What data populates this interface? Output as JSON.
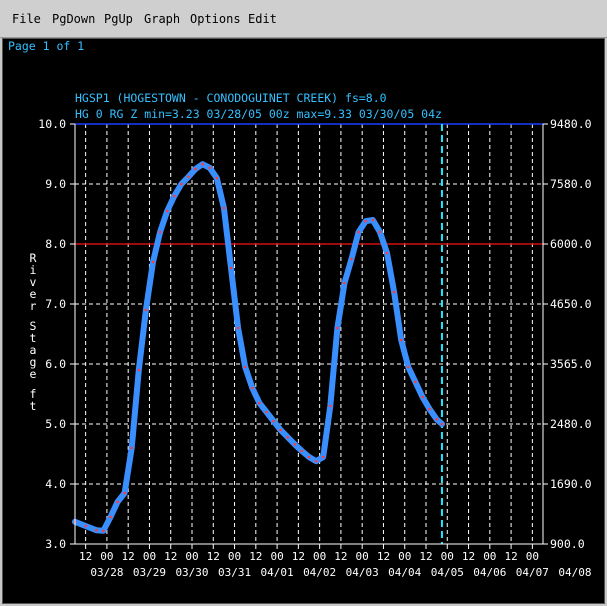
{
  "menu": [
    "File",
    "PgDown",
    "PgUp",
    "Graph",
    "Options",
    "Edit"
  ],
  "page_label": "Page 1 of 1",
  "colors": {
    "background": "#000000",
    "grid": "#ffffff",
    "axis_text": "#ffffff",
    "header_text": "#34c0ff",
    "observed_line": "#3a8fff",
    "observed_points": "#ff3a3a",
    "flood_stage_line": "#d01010",
    "top_line": "#1a3fff",
    "current_time_line": "#1ee6ff"
  },
  "chart_data": {
    "type": "line",
    "title": "HGSP1 (HOGESTOWN - CONODOGUINET CREEK) fs=8.0",
    "subtitle": "HG 0 RG Z min=3.23 03/28/05 00z max=9.33 03/30/05 04z",
    "ylabel": "River Stage ft",
    "ylim": [
      3.0,
      10.0
    ],
    "y_ticks": [
      "3.0",
      "4.0",
      "5.0",
      "6.0",
      "7.0",
      "8.0",
      "9.0",
      "10.0"
    ],
    "right_ticks": [
      "900.0",
      "1690.0",
      "2480.0",
      "3565.0",
      "4650.0",
      "6000.0",
      "7580.0",
      "9480.0"
    ],
    "x_range_hours": [
      0,
      264
    ],
    "x_tick_labels": [
      "12",
      "00",
      "12",
      "00",
      "12",
      "00",
      "12",
      "00",
      "12",
      "00",
      "12",
      "00",
      "12",
      "00",
      "12",
      "00",
      "12",
      "00",
      "12",
      "00",
      "12",
      "00"
    ],
    "date_labels": [
      "03/28",
      "03/29",
      "03/30",
      "03/31",
      "04/01",
      "04/02",
      "04/03",
      "04/04",
      "04/05",
      "04/06",
      "04/07",
      "04/08"
    ],
    "flood_stage": 8.0,
    "current_time_hour": 207,
    "series": [
      {
        "x": [
          0,
          6,
          12,
          16,
          20,
          24,
          28,
          32,
          36,
          40,
          44,
          48,
          52,
          56,
          60,
          64,
          68,
          72,
          76,
          80,
          84,
          88,
          92,
          96,
          100,
          104,
          108,
          112,
          116,
          120,
          124,
          128,
          132,
          136,
          140,
          144,
          148,
          152,
          156,
          160,
          164,
          168,
          172,
          176,
          180,
          184,
          188,
          192,
          196,
          200,
          204,
          207
        ],
        "y": [
          3.37,
          3.3,
          3.23,
          3.22,
          3.45,
          3.7,
          3.85,
          4.6,
          5.9,
          6.9,
          7.7,
          8.2,
          8.55,
          8.8,
          9.0,
          9.12,
          9.25,
          9.33,
          9.27,
          9.1,
          8.6,
          7.6,
          6.6,
          5.95,
          5.6,
          5.35,
          5.2,
          5.05,
          4.9,
          4.78,
          4.66,
          4.55,
          4.45,
          4.38,
          4.45,
          5.3,
          6.6,
          7.35,
          7.75,
          8.2,
          8.38,
          8.4,
          8.2,
          7.85,
          7.2,
          6.4,
          5.95,
          5.7,
          5.45,
          5.25,
          5.08,
          5.0
        ]
      }
    ]
  }
}
